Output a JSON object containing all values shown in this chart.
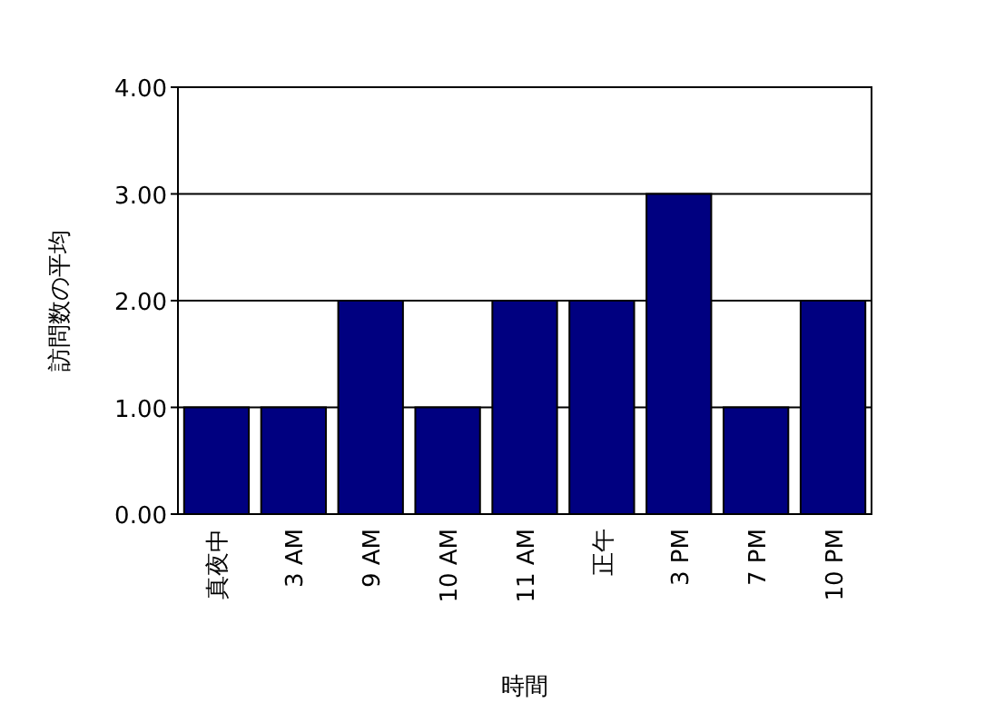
{
  "chart_data": {
    "type": "bar",
    "xlabel": "時間",
    "ylabel": "訪問数の平均",
    "categories": [
      "真夜中",
      "3 AM",
      "9 AM",
      "10 AM",
      "11 AM",
      "正午",
      "3 PM",
      "7 PM",
      "10 PM"
    ],
    "values": [
      1,
      1,
      2,
      1,
      2,
      2,
      3,
      1,
      2
    ],
    "color": "#000080",
    "ylim": [
      0,
      4
    ],
    "yticks": [
      {
        "value": 0,
        "label": "0.00"
      },
      {
        "value": 1,
        "label": "1.00"
      },
      {
        "value": 2,
        "label": "2.00"
      },
      {
        "value": 3,
        "label": "3.00"
      },
      {
        "value": 4,
        "label": "4.00"
      }
    ],
    "grid": "y"
  }
}
